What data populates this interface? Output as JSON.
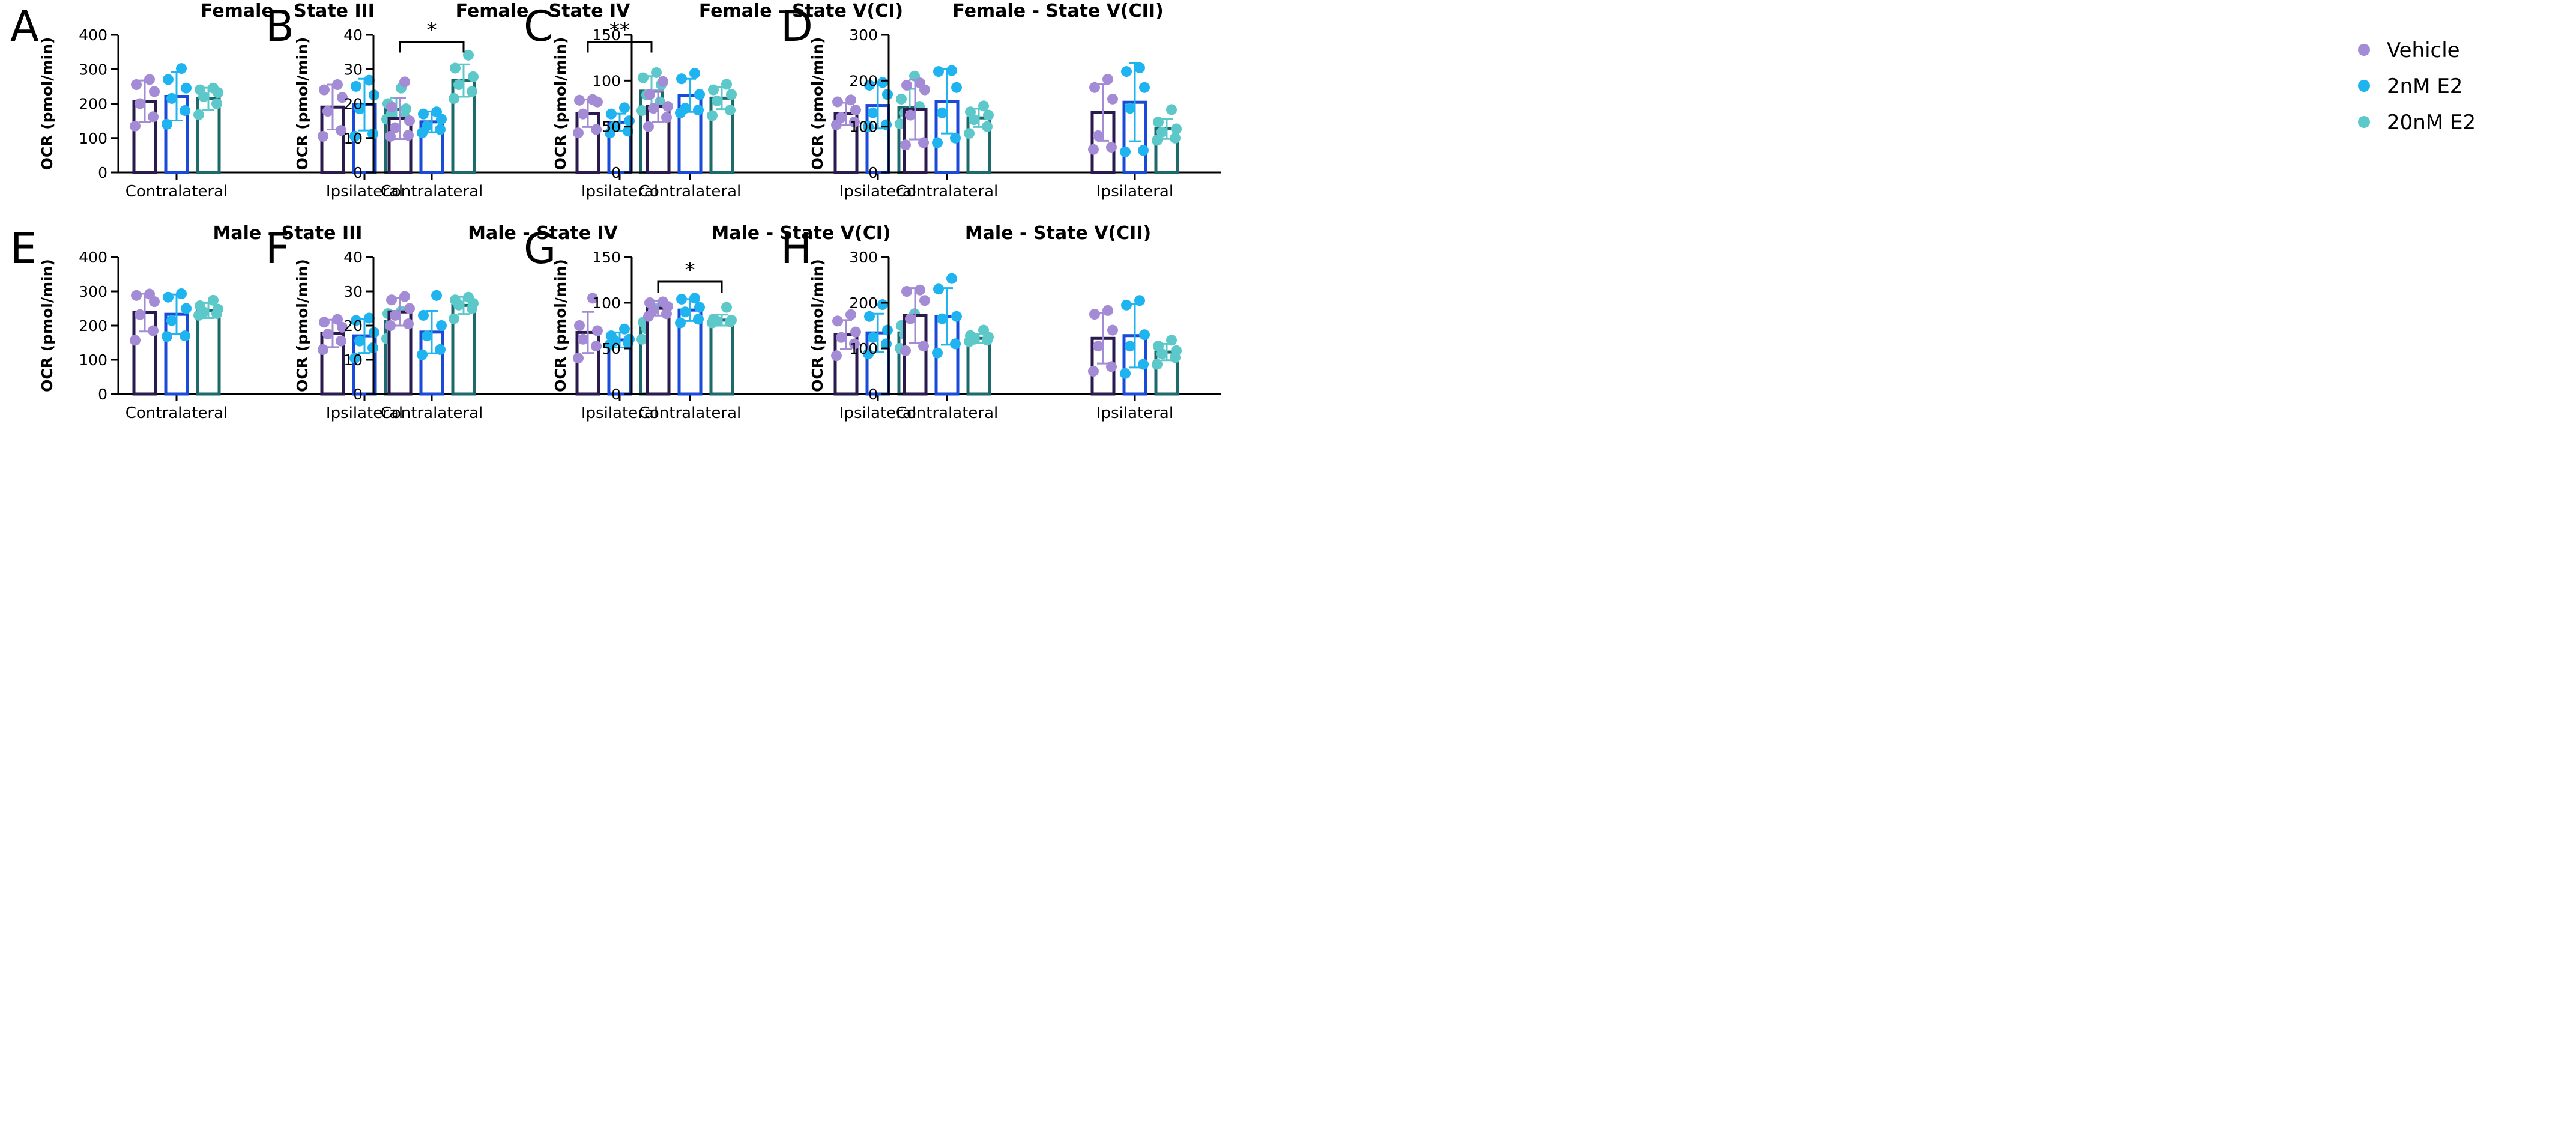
{
  "colors": {
    "vehicle": "#a48bd6",
    "e2_2nm": "#1fb4f0",
    "e2_20nm": "#5cc8c9",
    "vehicle_bar": "#2a1a4d",
    "e2_2nm_bar": "#1a4ad8",
    "e2_20nm_bar": "#1d6a6c",
    "axis": "#000000"
  },
  "legend": [
    {
      "key": "vehicle",
      "label": "Vehicle"
    },
    {
      "key": "e2_2nm",
      "label": "2nM E2"
    },
    {
      "key": "e2_20nm",
      "label": "20nM E2"
    }
  ],
  "chart_data": [
    {
      "panel": "A",
      "type": "bar",
      "title": "Female - State III",
      "ylabel": "OCR (pmol/min)",
      "ylim": [
        0,
        400
      ],
      "yticks": [
        0,
        100,
        200,
        300,
        400
      ],
      "categories": [
        "Contralateral",
        "Ipsilateral"
      ],
      "series": [
        {
          "name": "Vehicle",
          "key": "vehicle",
          "values": [
            207,
            190
          ],
          "sd": [
            60,
            65
          ],
          "points": [
            [
              135,
              162,
              200,
              235,
              255,
              270
            ],
            [
              105,
              122,
              178,
              218,
              240,
              255
            ]
          ]
        },
        {
          "name": "2nM E2",
          "key": "e2_2nm",
          "values": [
            221,
            197
          ],
          "sd": [
            70,
            75
          ],
          "points": [
            [
              140,
              180,
              215,
              245,
              270,
              302
            ],
            [
              105,
              112,
              185,
              225,
              250,
              268
            ]
          ]
        },
        {
          "name": "20nM E2",
          "key": "e2_20nm",
          "values": [
            214,
            184
          ],
          "sd": [
            32,
            32
          ],
          "points": [
            [
              168,
              200,
              220,
              232,
              240,
              245
            ],
            [
              155,
              162,
              172,
              185,
              200,
              245
            ]
          ]
        }
      ],
      "annotations": []
    },
    {
      "panel": "B",
      "type": "bar",
      "title": "Female - State IV",
      "ylabel": "OCR (pmol/min)",
      "ylim": [
        0,
        40
      ],
      "yticks": [
        0,
        10,
        20,
        30,
        40
      ],
      "categories": [
        "Contralateral",
        "Ipsilateral"
      ],
      "series": [
        {
          "name": "Vehicle",
          "key": "vehicle",
          "values": [
            15.7,
            17.2
          ],
          "sd": [
            6,
            4
          ],
          "points": [
            [
              10.5,
              10.8,
              13,
              15,
              19,
              26.3
            ],
            [
              11.5,
              12.5,
              17,
              20.5,
              21,
              21.2
            ]
          ]
        },
        {
          "name": "2nM E2",
          "key": "e2_2nm",
          "values": [
            14.7,
            14.6
          ],
          "sd": [
            3,
            2.5
          ],
          "points": [
            [
              11.5,
              12.5,
              13.5,
              15.5,
              17,
              17.6
            ],
            [
              11.5,
              12,
              13.5,
              15,
              17,
              18.8
            ]
          ]
        },
        {
          "name": "20nM E2",
          "key": "e2_20nm",
          "values": [
            26.7,
            23.6
          ],
          "sd": [
            4.7,
            4.4
          ],
          "points": [
            [
              21.5,
              23.5,
              25.5,
              27.8,
              30.3,
              34.1
            ],
            [
              18,
              20.5,
              22.5,
              25.5,
              27.5,
              29
            ]
          ]
        }
      ],
      "annotations": [
        {
          "from_category": 0,
          "from_series": 0,
          "to_category": 0,
          "to_series": 2,
          "y": 38,
          "label": "*"
        },
        {
          "from_category": 1,
          "from_series": 0,
          "to_category": 1,
          "to_series": 2,
          "y": 38,
          "label": "**"
        }
      ]
    },
    {
      "panel": "C",
      "type": "bar",
      "title": "Female - State V(CI)",
      "ylabel": "OCR (pmol/min)",
      "ylim": [
        0,
        150
      ],
      "yticks": [
        0,
        50,
        100,
        150
      ],
      "categories": [
        "Contralateral",
        "Ipsilateral"
      ],
      "series": [
        {
          "name": "Vehicle",
          "key": "vehicle",
          "values": [
            72,
            64
          ],
          "sd": [
            17,
            12
          ],
          "points": [
            [
              50,
              60,
              70,
              72,
              85,
              99
            ],
            [
              52,
              55,
              60,
              68,
              77,
              79
            ]
          ]
        },
        {
          "name": "2nM E2",
          "key": "e2_2nm",
          "values": [
            84,
            73
          ],
          "sd": [
            18,
            25
          ],
          "points": [
            [
              65,
              68,
              70,
              85,
              102,
              108
            ],
            [
              50,
              52,
              65,
              85,
              95,
              98
            ]
          ]
        },
        {
          "name": "20nM E2",
          "key": "e2_20nm",
          "values": [
            81,
            71
          ],
          "sd": [
            12,
            20
          ],
          "points": [
            [
              62,
              68,
              78,
              85,
              90,
              96
            ],
            [
              53,
              60,
              65,
              72,
              80,
              105
            ]
          ]
        }
      ],
      "annotations": []
    },
    {
      "panel": "D",
      "type": "bar",
      "title": "Female - State V(CII)",
      "ylabel": "OCR (pmol/min)",
      "ylim": [
        0,
        300
      ],
      "yticks": [
        0,
        100,
        200,
        300
      ],
      "categories": [
        "Contralateral",
        "Ipsilateral"
      ],
      "series": [
        {
          "name": "Vehicle",
          "key": "vehicle",
          "values": [
            137,
            131
          ],
          "sd": [
            65,
            62
          ],
          "points": [
            [
              60,
              65,
              125,
              180,
              190,
              195
            ],
            [
              50,
              55,
              80,
              160,
              185,
              203
            ]
          ]
        },
        {
          "name": "2nM E2",
          "key": "e2_2nm",
          "values": [
            155,
            153
          ],
          "sd": [
            70,
            85
          ],
          "points": [
            [
              65,
              75,
              130,
              185,
              220,
              222
            ],
            [
              45,
              48,
              140,
              185,
              220,
              228
            ]
          ]
        },
        {
          "name": "20nM E2",
          "key": "e2_20nm",
          "values": [
            119,
            95
          ],
          "sd": [
            20,
            22
          ],
          "points": [
            [
              85,
              100,
              115,
              125,
              132,
              145
            ],
            [
              70,
              75,
              88,
              95,
              110,
              137
            ]
          ]
        }
      ],
      "annotations": []
    },
    {
      "panel": "E",
      "type": "bar",
      "title": "Male - State III",
      "ylabel": "OCR (pmol/min)",
      "ylim": [
        0,
        400
      ],
      "yticks": [
        0,
        100,
        200,
        300,
        400
      ],
      "categories": [
        "Contralateral",
        "Ipsilateral"
      ],
      "series": [
        {
          "name": "Vehicle",
          "key": "vehicle",
          "values": [
            238,
            177
          ],
          "sd": [
            55,
            40
          ],
          "points": [
            [
              157,
              185,
              232,
              270,
              288,
              292
            ],
            [
              130,
              155,
              175,
              195,
              210,
              218
            ]
          ]
        },
        {
          "name": "2nM E2",
          "key": "e2_2nm",
          "values": [
            233,
            170
          ],
          "sd": [
            58,
            50
          ],
          "points": [
            [
              168,
              170,
              215,
              250,
              283,
              293
            ],
            [
              105,
              135,
              155,
              180,
              215,
              222
            ]
          ]
        },
        {
          "name": "20nM E2",
          "key": "e2_20nm",
          "values": [
            244,
            213
          ],
          "sd": [
            22,
            30
          ],
          "points": [
            [
              230,
              235,
              240,
              248,
              258,
              274
            ],
            [
              162,
              190,
              210,
              225,
              235,
              242
            ]
          ]
        }
      ],
      "annotations": []
    },
    {
      "panel": "F",
      "type": "bar",
      "title": "Male - State IV",
      "ylabel": "OCR (pmol/min)",
      "ylim": [
        0,
        40
      ],
      "yticks": [
        0,
        10,
        20,
        30,
        40
      ],
      "categories": [
        "Contralateral",
        "Ipsilateral"
      ],
      "series": [
        {
          "name": "Vehicle",
          "key": "vehicle",
          "values": [
            24,
            18
          ],
          "sd": [
            4,
            6
          ],
          "points": [
            [
              20,
              20.5,
              23,
              25,
              27.5,
              28.5
            ],
            [
              10.5,
              14,
              16,
              18.5,
              20,
              28
            ]
          ]
        },
        {
          "name": "2nM E2",
          "key": "e2_2nm",
          "values": [
            18.1,
            15.8
          ],
          "sd": [
            6.2,
            2.2
          ],
          "points": [
            [
              11.5,
              13,
              17,
              20,
              23,
              28.8
            ],
            [
              14.5,
              15,
              15.5,
              16,
              17,
              19
            ]
          ]
        },
        {
          "name": "20nM E2",
          "key": "e2_20nm",
          "values": [
            25.9,
            19.4
          ],
          "sd": [
            2.5,
            3.5
          ],
          "points": [
            [
              22,
              25,
              26,
              26.5,
              27.5,
              28.3
            ],
            [
              16,
              18,
              19,
              20,
              21,
              25
            ]
          ]
        }
      ],
      "annotations": []
    },
    {
      "panel": "G",
      "type": "bar",
      "title": "Male - State V(CI)",
      "ylabel": "OCR (pmol/min)",
      "ylim": [
        0,
        150
      ],
      "yticks": [
        0,
        50,
        100,
        150
      ],
      "categories": [
        "Contralateral",
        "Ipsilateral"
      ],
      "series": [
        {
          "name": "Vehicle",
          "key": "vehicle",
          "values": [
            94,
            65
          ],
          "sd": [
            8,
            16
          ],
          "points": [
            [
              85,
              88,
              92,
              96,
              100,
              101
            ],
            [
              42,
              55,
              62,
              68,
              80,
              87
            ]
          ]
        },
        {
          "name": "2nM E2",
          "key": "e2_2nm",
          "values": [
            92,
            67
          ],
          "sd": [
            12,
            21
          ],
          "points": [
            [
              78,
              82,
              90,
              95,
              104,
              105
            ],
            [
              44,
              55,
              62,
              70,
              85,
              98
            ]
          ]
        },
        {
          "name": "20nM E2",
          "key": "e2_20nm",
          "values": [
            81,
            67
          ],
          "sd": [
            6,
            15
          ],
          "points": [
            [
              78,
              79,
              80,
              81,
              82,
              95
            ],
            [
              50,
              58,
              65,
              70,
              75,
              88
            ]
          ]
        }
      ],
      "annotations": [
        {
          "from_category": 0,
          "from_series": 0,
          "to_category": 0,
          "to_series": 2,
          "y": 123,
          "label": "*"
        }
      ]
    },
    {
      "panel": "H",
      "type": "bar",
      "title": "Male - State V(CII)",
      "ylabel": "OCR (pmol/min)",
      "ylim": [
        0,
        300
      ],
      "yticks": [
        0,
        100,
        200,
        300
      ],
      "categories": [
        "Contralateral",
        "Ipsilateral"
      ],
      "series": [
        {
          "name": "Vehicle",
          "key": "vehicle",
          "values": [
            172,
            122
          ],
          "sd": [
            60,
            55
          ],
          "points": [
            [
              95,
              105,
              165,
              205,
              225,
              228
            ],
            [
              50,
              60,
              105,
              140,
              175,
              183
            ]
          ]
        },
        {
          "name": "2nM E2",
          "key": "e2_2nm",
          "values": [
            170,
            128
          ],
          "sd": [
            62,
            70
          ],
          "points": [
            [
              90,
              110,
              165,
              170,
              230,
              253
            ],
            [
              45,
              65,
              105,
              130,
              195,
              205
            ]
          ]
        },
        {
          "name": "20nM E2",
          "key": "e2_20nm",
          "values": [
            122,
            92
          ],
          "sd": [
            10,
            18
          ],
          "points": [
            [
              115,
              118,
              120,
              125,
              128,
              140
            ],
            [
              65,
              80,
              88,
              95,
              105,
              118
            ]
          ]
        }
      ],
      "annotations": []
    }
  ]
}
